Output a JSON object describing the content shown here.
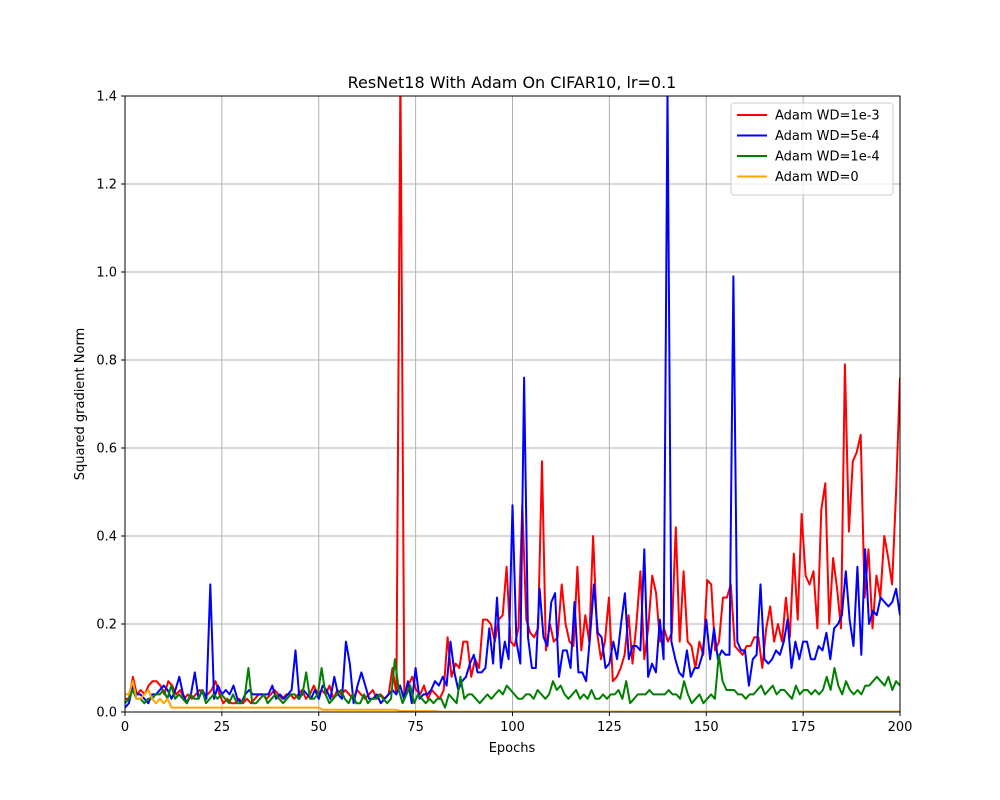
{
  "chart_data": {
    "type": "line",
    "title": "ResNet18 With Adam On CIFAR10, lr=0.1",
    "xlabel": "Epochs",
    "ylabel": "Squared gradient Norm",
    "xlim": [
      0,
      200
    ],
    "ylim": [
      0,
      1.4
    ],
    "xticks": [
      0,
      25,
      50,
      75,
      100,
      125,
      150,
      175,
      200
    ],
    "yticks": [
      0.0,
      0.2,
      0.4,
      0.6,
      0.8,
      1.0,
      1.2,
      1.4
    ],
    "ytick_labels": [
      "0.0",
      "0.2",
      "0.4",
      "0.6",
      "0.8",
      "1.0",
      "1.2",
      "1.4"
    ],
    "grid": true,
    "legend_position": "top-right",
    "series": [
      {
        "name": "Adam WD=1e-3",
        "color": "#ff0000",
        "values": [
          0.03,
          0.03,
          0.08,
          0.04,
          0.05,
          0.04,
          0.06,
          0.07,
          0.07,
          0.06,
          0.04,
          0.07,
          0.06,
          0.04,
          0.05,
          0.03,
          0.04,
          0.03,
          0.04,
          0.05,
          0.04,
          0.04,
          0.05,
          0.07,
          0.04,
          0.02,
          0.03,
          0.02,
          0.02,
          0.03,
          0.02,
          0.03,
          0.02,
          0.03,
          0.04,
          0.04,
          0.03,
          0.04,
          0.05,
          0.04,
          0.03,
          0.04,
          0.04,
          0.03,
          0.04,
          0.05,
          0.03,
          0.04,
          0.06,
          0.04,
          0.05,
          0.04,
          0.06,
          0.03,
          0.05,
          0.04,
          0.05,
          0.04,
          0.03,
          0.05,
          0.04,
          0.03,
          0.04,
          0.05,
          0.03,
          0.04,
          0.03,
          0.04,
          0.1,
          0.04,
          1.45,
          0.04,
          0.06,
          0.08,
          0.05,
          0.04,
          0.06,
          0.03,
          0.05,
          0.04,
          0.03,
          0.05,
          0.17,
          0.08,
          0.11,
          0.1,
          0.16,
          0.16,
          0.08,
          0.12,
          0.1,
          0.21,
          0.21,
          0.2,
          0.16,
          0.21,
          0.22,
          0.33,
          0.16,
          0.15,
          0.19,
          0.47,
          0.21,
          0.18,
          0.17,
          0.19,
          0.57,
          0.14,
          0.2,
          0.16,
          0.17,
          0.29,
          0.2,
          0.16,
          0.15,
          0.33,
          0.14,
          0.22,
          0.16,
          0.4,
          0.18,
          0.12,
          0.16,
          0.26,
          0.07,
          0.08,
          0.1,
          0.13,
          0.22,
          0.11,
          0.2,
          0.32,
          0.12,
          0.19,
          0.31,
          0.27,
          0.16,
          0.19,
          0.16,
          0.18,
          0.42,
          0.16,
          0.32,
          0.16,
          0.15,
          0.1,
          0.16,
          0.13,
          0.3,
          0.29,
          0.14,
          0.16,
          0.26,
          0.26,
          0.29,
          0.15,
          0.14,
          0.13,
          0.15,
          0.15,
          0.17,
          0.17,
          0.1,
          0.19,
          0.24,
          0.16,
          0.2,
          0.16,
          0.26,
          0.17,
          0.36,
          0.21,
          0.45,
          0.31,
          0.29,
          0.32,
          0.19,
          0.46,
          0.52,
          0.2,
          0.35,
          0.28,
          0.19,
          0.79,
          0.41,
          0.57,
          0.59,
          0.63,
          0.26,
          0.37,
          0.19,
          0.31,
          0.26,
          0.4,
          0.35,
          0.29,
          0.5,
          0.76
        ]
      },
      {
        "name": "Adam WD=5e-4",
        "color": "#0000ff",
        "values": [
          0.01,
          0.02,
          0.06,
          0.04,
          0.04,
          0.03,
          0.02,
          0.04,
          0.04,
          0.05,
          0.06,
          0.05,
          0.03,
          0.05,
          0.08,
          0.04,
          0.02,
          0.04,
          0.09,
          0.03,
          0.05,
          0.03,
          0.29,
          0.03,
          0.06,
          0.04,
          0.05,
          0.04,
          0.06,
          0.03,
          0.02,
          0.04,
          0.05,
          0.04,
          0.04,
          0.04,
          0.04,
          0.04,
          0.06,
          0.03,
          0.04,
          0.03,
          0.04,
          0.05,
          0.14,
          0.03,
          0.05,
          0.04,
          0.03,
          0.05,
          0.03,
          0.06,
          0.05,
          0.03,
          0.08,
          0.04,
          0.03,
          0.16,
          0.11,
          0.02,
          0.06,
          0.09,
          0.06,
          0.03,
          0.03,
          0.04,
          0.02,
          0.03,
          0.04,
          0.05,
          0.04,
          0.06,
          0.03,
          0.07,
          0.02,
          0.1,
          0.03,
          0.04,
          0.04,
          0.05,
          0.07,
          0.06,
          0.08,
          0.06,
          0.16,
          0.09,
          0.05,
          0.07,
          0.08,
          0.11,
          0.13,
          0.09,
          0.09,
          0.1,
          0.19,
          0.11,
          0.26,
          0.1,
          0.16,
          0.12,
          0.47,
          0.16,
          0.11,
          0.76,
          0.17,
          0.1,
          0.1,
          0.28,
          0.17,
          0.15,
          0.25,
          0.27,
          0.08,
          0.14,
          0.14,
          0.1,
          0.25,
          0.09,
          0.09,
          0.07,
          0.17,
          0.29,
          0.18,
          0.17,
          0.1,
          0.11,
          0.16,
          0.12,
          0.2,
          0.27,
          0.12,
          0.15,
          0.15,
          0.14,
          0.37,
          0.08,
          0.11,
          0.09,
          0.21,
          0.12,
          1.41,
          0.16,
          0.12,
          0.09,
          0.08,
          0.14,
          0.08,
          0.1,
          0.1,
          0.13,
          0.21,
          0.12,
          0.19,
          0.12,
          0.14,
          0.13,
          0.13,
          0.99,
          0.16,
          0.14,
          0.14,
          0.06,
          0.12,
          0.13,
          0.29,
          0.12,
          0.11,
          0.12,
          0.14,
          0.13,
          0.16,
          0.21,
          0.1,
          0.16,
          0.12,
          0.16,
          0.16,
          0.12,
          0.12,
          0.15,
          0.14,
          0.18,
          0.12,
          0.19,
          0.2,
          0.22,
          0.32,
          0.21,
          0.15,
          0.33,
          0.13,
          0.37,
          0.2,
          0.23,
          0.22,
          0.26,
          0.25,
          0.24,
          0.25,
          0.28,
          0.22
        ]
      },
      {
        "name": "Adam WD=1e-4",
        "color": "#008000",
        "values": [
          0.02,
          0.03,
          0.05,
          0.03,
          0.03,
          0.02,
          0.03,
          0.03,
          0.04,
          0.04,
          0.05,
          0.03,
          0.06,
          0.03,
          0.04,
          0.03,
          0.02,
          0.04,
          0.03,
          0.03,
          0.05,
          0.02,
          0.03,
          0.04,
          0.03,
          0.04,
          0.03,
          0.02,
          0.04,
          0.02,
          0.02,
          0.03,
          0.1,
          0.02,
          0.02,
          0.03,
          0.04,
          0.02,
          0.03,
          0.04,
          0.03,
          0.02,
          0.03,
          0.04,
          0.04,
          0.03,
          0.04,
          0.09,
          0.03,
          0.03,
          0.04,
          0.1,
          0.04,
          0.02,
          0.03,
          0.04,
          0.05,
          0.03,
          0.02,
          0.04,
          0.02,
          0.02,
          0.04,
          0.02,
          0.03,
          0.03,
          0.04,
          0.03,
          0.02,
          0.03,
          0.12,
          0.05,
          0.02,
          0.04,
          0.06,
          0.02,
          0.04,
          0.03,
          0.02,
          0.03,
          0.02,
          0.03,
          0.03,
          0.01,
          0.04,
          0.03,
          0.02,
          0.08,
          0.03,
          0.04,
          0.04,
          0.03,
          0.02,
          0.03,
          0.04,
          0.03,
          0.04,
          0.05,
          0.04,
          0.06,
          0.05,
          0.04,
          0.03,
          0.03,
          0.04,
          0.04,
          0.03,
          0.05,
          0.04,
          0.03,
          0.04,
          0.07,
          0.05,
          0.06,
          0.04,
          0.03,
          0.04,
          0.05,
          0.03,
          0.04,
          0.03,
          0.05,
          0.03,
          0.03,
          0.04,
          0.03,
          0.04,
          0.04,
          0.05,
          0.03,
          0.07,
          0.02,
          0.03,
          0.04,
          0.04,
          0.04,
          0.05,
          0.04,
          0.04,
          0.04,
          0.04,
          0.05,
          0.04,
          0.04,
          0.03,
          0.07,
          0.04,
          0.02,
          0.03,
          0.04,
          0.02,
          0.03,
          0.04,
          0.03,
          0.13,
          0.07,
          0.05,
          0.05,
          0.05,
          0.04,
          0.04,
          0.03,
          0.04,
          0.04,
          0.05,
          0.06,
          0.04,
          0.05,
          0.06,
          0.04,
          0.05,
          0.05,
          0.04,
          0.03,
          0.06,
          0.04,
          0.05,
          0.05,
          0.04,
          0.05,
          0.04,
          0.05,
          0.08,
          0.05,
          0.1,
          0.06,
          0.04,
          0.07,
          0.05,
          0.04,
          0.05,
          0.04,
          0.06,
          0.06,
          0.07,
          0.08,
          0.07,
          0.06,
          0.08,
          0.05,
          0.07,
          0.06
        ]
      },
      {
        "name": "Adam WD=0",
        "color": "#ffa500",
        "values": [
          0.04,
          0.04,
          0.07,
          0.03,
          0.03,
          0.04,
          0.05,
          0.03,
          0.02,
          0.03,
          0.02,
          0.03,
          0.01,
          0.01,
          0.01,
          0.01,
          0.01,
          0.01,
          0.01,
          0.01,
          0.01,
          0.01,
          0.01,
          0.01,
          0.01,
          0.01,
          0.01,
          0.01,
          0.01,
          0.01,
          0.01,
          0.01,
          0.01,
          0.01,
          0.01,
          0.01,
          0.01,
          0.01,
          0.01,
          0.01,
          0.01,
          0.01,
          0.01,
          0.01,
          0.01,
          0.01,
          0.01,
          0.01,
          0.01,
          0.01,
          0.01,
          0.005,
          0.005,
          0.005,
          0.005,
          0.005,
          0.005,
          0.005,
          0.005,
          0.005,
          0.005,
          0.005,
          0.005,
          0.005,
          0.005,
          0.005,
          0.005,
          0.005,
          0.005,
          0.005,
          0.005,
          0.002,
          0.002,
          0.002,
          0.002,
          0.002,
          0.002,
          0.002,
          0.002,
          0.002,
          0.002,
          0.001,
          0.001,
          0.001,
          0.001,
          0.001,
          0.001,
          0.001,
          0.001,
          0.001,
          0.001,
          0.001,
          0.001,
          0.001,
          0.001,
          0.001,
          0.001,
          0.001,
          0.001,
          0.001,
          0.001,
          0.001,
          0.001,
          0.001,
          0.001,
          0.001,
          0.001,
          0.001,
          0.001,
          0.001,
          0.001,
          0.001,
          0.001,
          0.001,
          0.001,
          0.001,
          0.001,
          0.001,
          0.001,
          0.001,
          0.001,
          0.001,
          0.001,
          0.001,
          0.001,
          0.001,
          0.001,
          0.001,
          0.001,
          0.001,
          0.001,
          0.001,
          0.001,
          0.001,
          0.001,
          0.001,
          0.001,
          0.001,
          0.001,
          0.001,
          0.001,
          0.001,
          0.001,
          0.001,
          0.001,
          0.001,
          0.001,
          0.001,
          0.001,
          0.001,
          0.001,
          0.001,
          0.001,
          0.001,
          0.001,
          0.001,
          0.001,
          0.001,
          0.001,
          0.001,
          0.001,
          0.001,
          0.001,
          0.001,
          0.001,
          0.001,
          0.001,
          0.001,
          0.001,
          0.001,
          0.001,
          0.001,
          0.001,
          0.001,
          0.001,
          0.001,
          0.001,
          0.001,
          0.001,
          0.001,
          0.001,
          0.001,
          0.001,
          0.001,
          0.001,
          0.001,
          0.001,
          0.001,
          0.001,
          0.001,
          0.001,
          0.001,
          0.001,
          0.001,
          0.001,
          0.001,
          0.001,
          0.001,
          0.001,
          0.001,
          0.001
        ]
      }
    ]
  }
}
